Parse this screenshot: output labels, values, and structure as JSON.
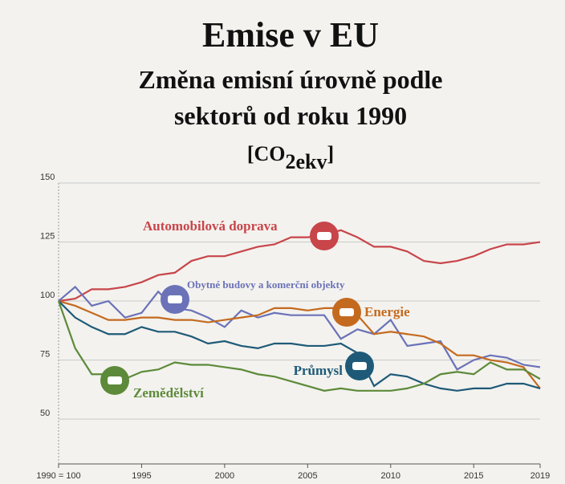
{
  "chart_data": {
    "type": "line",
    "title": "Emise v EU",
    "subtitle": [
      "Změna emisní úrovně podle",
      "sektorů od roku 1990"
    ],
    "unit": [
      "[CO",
      "2ekv",
      "]"
    ],
    "x": [
      1990,
      1991,
      1992,
      1993,
      1994,
      1995,
      1996,
      1997,
      1998,
      1999,
      2000,
      2001,
      2002,
      2003,
      2004,
      2005,
      2006,
      2007,
      2008,
      2009,
      2010,
      2011,
      2012,
      2013,
      2014,
      2015,
      2016,
      2017,
      2018,
      2019
    ],
    "xlim": [
      1990,
      2019
    ],
    "xticks": [
      {
        "value": 1990,
        "label": "1990 = 100"
      },
      1995,
      2000,
      2005,
      2010,
      2015,
      2019
    ],
    "ylim": [
      31,
      150
    ],
    "yticks": [
      50,
      75,
      100,
      125,
      150
    ],
    "grid": true,
    "series": [
      {
        "name": "Automobilová doprava",
        "color": "#c8454a",
        "values": [
          100,
          101,
          105,
          105,
          106,
          108,
          111,
          112,
          117,
          119,
          119,
          121,
          123,
          124,
          127,
          127,
          128,
          130,
          127,
          123,
          123,
          121,
          117,
          116,
          117,
          119,
          122,
          124,
          124,
          125
        ]
      },
      {
        "name": "Obytné budovy a komerční objekty",
        "color": "#6b72b8",
        "values": [
          100,
          106,
          98,
          100,
          93,
          95,
          104,
          97,
          96,
          93,
          89,
          96,
          93,
          95,
          94,
          94,
          94,
          84,
          88,
          86,
          92,
          81,
          82,
          83,
          71,
          75,
          77,
          76,
          73,
          72
        ]
      },
      {
        "name": "Energie",
        "color": "#c46a1f",
        "values": [
          100,
          98,
          95,
          92,
          92,
          93,
          93,
          92,
          92,
          91,
          92,
          93,
          94,
          97,
          97,
          96,
          97,
          97,
          94,
          86,
          87,
          86,
          85,
          82,
          77,
          77,
          75,
          74,
          72,
          63
        ]
      },
      {
        "name": "Průmysl",
        "color": "#1e5a78",
        "values": [
          100,
          93,
          89,
          86,
          86,
          89,
          87,
          87,
          85,
          82,
          83,
          81,
          80,
          82,
          82,
          81,
          81,
          82,
          78,
          64,
          69,
          68,
          65,
          63,
          62,
          63,
          63,
          65,
          65,
          63
        ]
      },
      {
        "name": "Zemědělství",
        "color": "#5d8a3a",
        "values": [
          100,
          80,
          69,
          69,
          67,
          70,
          71,
          74,
          73,
          73,
          72,
          71,
          69,
          68,
          66,
          64,
          62,
          63,
          62,
          62,
          62,
          63,
          65,
          69,
          70,
          69,
          74,
          71,
          71,
          67
        ]
      }
    ]
  }
}
